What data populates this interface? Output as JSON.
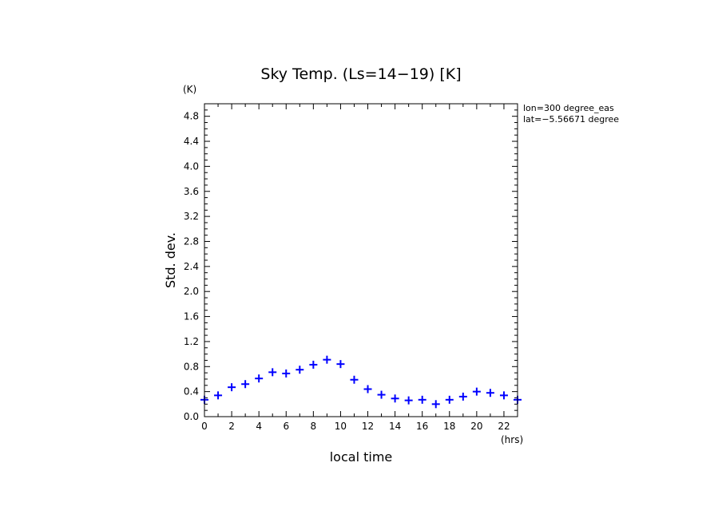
{
  "chart_data": {
    "type": "scatter",
    "title": "Sky Temp. (Ls=14−19) [K]",
    "xlabel": "local time",
    "ylabel": "Std. dev.",
    "x_unit": "(hrs)",
    "y_unit": "(K)",
    "annotations": [
      "lon=300 degree_eas",
      "lat=−5.56671 degree"
    ],
    "xlim": [
      0,
      23
    ],
    "ylim": [
      0,
      5.0
    ],
    "xticks": [
      "0",
      "2",
      "4",
      "6",
      "8",
      "10",
      "12",
      "14",
      "16",
      "18",
      "20",
      "22"
    ],
    "yticks": [
      "0.0",
      "0.4",
      "0.8",
      "1.2",
      "1.6",
      "2.0",
      "2.4",
      "2.8",
      "3.2",
      "3.6",
      "4.0",
      "4.4",
      "4.8"
    ],
    "grid": false,
    "marker": "+",
    "marker_color": "#0000ff",
    "x": [
      0,
      1,
      2,
      3,
      4,
      5,
      6,
      7,
      8,
      9,
      10,
      11,
      12,
      13,
      14,
      15,
      16,
      17,
      18,
      19,
      20,
      21,
      22,
      23
    ],
    "y": [
      0.27,
      0.34,
      0.47,
      0.52,
      0.61,
      0.71,
      0.69,
      0.75,
      0.83,
      0.91,
      0.84,
      0.59,
      0.44,
      0.35,
      0.29,
      0.26,
      0.27,
      0.2,
      0.27,
      0.32,
      0.4,
      0.38,
      0.34,
      0.27
    ]
  }
}
